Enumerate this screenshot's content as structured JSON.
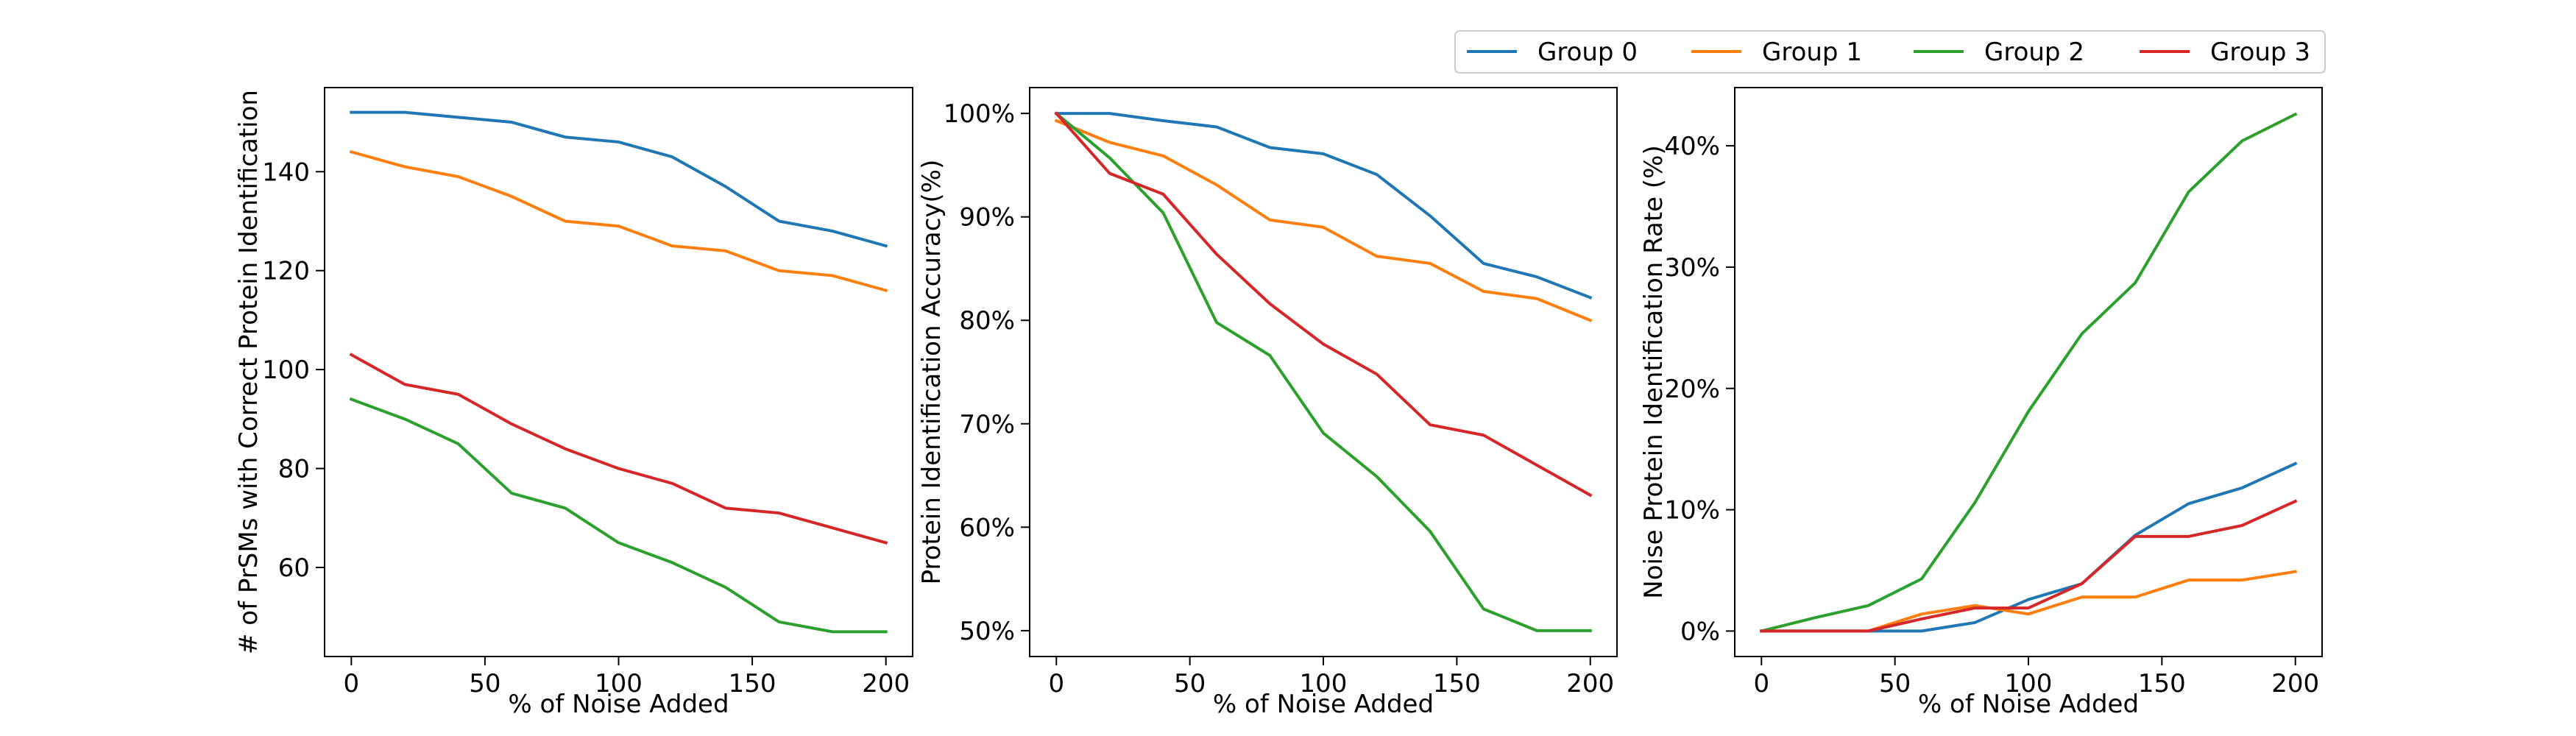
{
  "legend": {
    "placement": "top-right",
    "entries": [
      {
        "name": "Group 0",
        "color": "#1f77b4"
      },
      {
        "name": "Group 1",
        "color": "#ff7f0e"
      },
      {
        "name": "Group 2",
        "color": "#2ca02c"
      },
      {
        "name": "Group 3",
        "color": "#d62728"
      }
    ]
  },
  "chart_data": [
    {
      "type": "line",
      "title": "",
      "xlabel": "% of Noise Added",
      "ylabel": "# of PrSMs with Correct Protein Identification",
      "x": [
        0,
        20,
        40,
        60,
        80,
        100,
        120,
        140,
        160,
        180,
        200
      ],
      "xlim": [
        -10,
        210
      ],
      "ylim": [
        42,
        157
      ],
      "xticks": [
        0,
        50,
        100,
        150,
        200
      ],
      "xtick_labels": [
        "0",
        "50",
        "100",
        "150",
        "200"
      ],
      "yticks": [
        60,
        80,
        100,
        120,
        140
      ],
      "ytick_labels": [
        "60",
        "80",
        "100",
        "120",
        "140"
      ],
      "grid": false,
      "series": [
        {
          "name": "Group 0",
          "color": "#1f77b4",
          "values": [
            152,
            152,
            151,
            150,
            147,
            146,
            143,
            137,
            130,
            128,
            125
          ]
        },
        {
          "name": "Group 1",
          "color": "#ff7f0e",
          "values": [
            144,
            141,
            139,
            135,
            130,
            129,
            125,
            124,
            120,
            119,
            116
          ]
        },
        {
          "name": "Group 2",
          "color": "#2ca02c",
          "values": [
            94,
            90,
            85,
            75,
            72,
            65,
            61,
            56,
            49,
            47,
            47
          ]
        },
        {
          "name": "Group 3",
          "color": "#d62728",
          "values": [
            103,
            97,
            95,
            89,
            84,
            80,
            77,
            72,
            71,
            68,
            65
          ]
        }
      ]
    },
    {
      "type": "line",
      "title": "",
      "xlabel": "% of Noise Added",
      "ylabel": "Protein Identification Accuracy(%)",
      "x": [
        0,
        20,
        40,
        60,
        80,
        100,
        120,
        140,
        160,
        180,
        200
      ],
      "xlim": [
        -10,
        210
      ],
      "ylim": [
        47.5,
        102.5
      ],
      "xticks": [
        0,
        50,
        100,
        150,
        200
      ],
      "xtick_labels": [
        "0",
        "50",
        "100",
        "150",
        "200"
      ],
      "yticks": [
        50,
        60,
        70,
        80,
        90,
        100
      ],
      "ytick_labels": [
        "50%",
        "60%",
        "70%",
        "80%",
        "90%",
        "100%"
      ],
      "grid": false,
      "series": [
        {
          "name": "Group 0",
          "color": "#1f77b4",
          "values": [
            100,
            100,
            99.3,
            98.7,
            96.7,
            96.1,
            94.1,
            90.1,
            85.5,
            84.2,
            82.2
          ]
        },
        {
          "name": "Group 1",
          "color": "#ff7f0e",
          "values": [
            99.3,
            97.2,
            95.9,
            93.1,
            89.7,
            89.0,
            86.2,
            85.5,
            82.8,
            82.1,
            80.0
          ]
        },
        {
          "name": "Group 2",
          "color": "#2ca02c",
          "values": [
            100,
            95.7,
            90.4,
            79.8,
            76.6,
            69.1,
            64.9,
            59.6,
            52.1,
            50.0,
            50.0
          ]
        },
        {
          "name": "Group 3",
          "color": "#d62728",
          "values": [
            100,
            94.2,
            92.2,
            86.4,
            81.6,
            77.7,
            74.8,
            69.9,
            68.9,
            66.0,
            63.1
          ]
        }
      ]
    },
    {
      "type": "line",
      "title": "",
      "xlabel": "% of Noise Added",
      "ylabel": "Noise Protein Identification Rate (%)",
      "x": [
        0,
        20,
        40,
        60,
        80,
        100,
        120,
        140,
        160,
        180,
        200
      ],
      "xlim": [
        -10,
        210
      ],
      "ylim": [
        -2.1,
        44.8
      ],
      "xticks": [
        0,
        50,
        100,
        150,
        200
      ],
      "xtick_labels": [
        "0",
        "50",
        "100",
        "150",
        "200"
      ],
      "yticks": [
        0,
        10,
        20,
        30,
        40
      ],
      "ytick_labels": [
        "0%",
        "10%",
        "20%",
        "30%",
        "40%"
      ],
      "grid": false,
      "series": [
        {
          "name": "Group 0",
          "color": "#1f77b4",
          "values": [
            0,
            0,
            0,
            0,
            0.7,
            2.6,
            3.9,
            7.9,
            10.5,
            11.8,
            13.8
          ]
        },
        {
          "name": "Group 1",
          "color": "#ff7f0e",
          "values": [
            0,
            0,
            0,
            1.4,
            2.1,
            1.4,
            2.8,
            2.8,
            4.2,
            4.2,
            4.9
          ]
        },
        {
          "name": "Group 2",
          "color": "#2ca02c",
          "values": [
            0,
            1.1,
            2.1,
            4.3,
            10.6,
            18.1,
            24.5,
            28.7,
            36.2,
            40.4,
            42.6
          ]
        },
        {
          "name": "Group 3",
          "color": "#d62728",
          "values": [
            0,
            0,
            0,
            1.0,
            1.9,
            1.9,
            3.9,
            7.8,
            7.8,
            8.7,
            10.7
          ]
        }
      ]
    }
  ]
}
